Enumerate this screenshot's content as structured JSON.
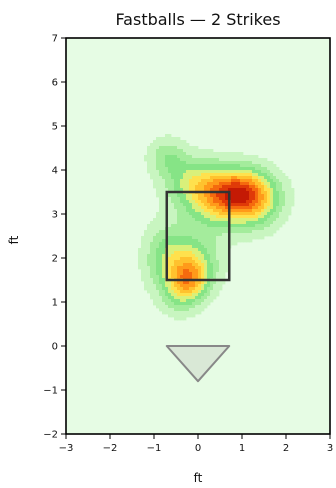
{
  "chart_data": {
    "type": "heatmap",
    "title": "Fastballs — 2 Strikes",
    "xlabel": "ft",
    "ylabel": "ft",
    "xlim": [
      -3,
      3
    ],
    "ylim": [
      -2,
      7
    ],
    "xticks": [
      -3,
      -2,
      -1,
      0,
      1,
      2,
      3
    ],
    "yticks": [
      -2,
      -1,
      0,
      1,
      2,
      3,
      4,
      5,
      6,
      7
    ],
    "xtick_labels": [
      "−3",
      "−2",
      "−1",
      "0",
      "1",
      "2",
      "3"
    ],
    "ytick_labels": [
      "−2",
      "−1",
      "0",
      "1",
      "2",
      "3",
      "4",
      "5",
      "6",
      "7"
    ],
    "grid": false,
    "background_color": "#e6fce4",
    "colormap": [
      "#e6fce4",
      "#c8f5c0",
      "#a4ec9c",
      "#86e486",
      "#d9f07a",
      "#ffe14d",
      "#ffc22e",
      "#ff9a1a",
      "#f56a0e",
      "#e03a08",
      "#c41a04"
    ],
    "density_peaks": [
      {
        "x": 0.95,
        "y": 3.5,
        "sx": 0.5,
        "sy": 0.38,
        "weight": 1.0
      },
      {
        "x": 0.45,
        "y": 3.25,
        "sx": 0.55,
        "sy": 0.45,
        "weight": 0.5
      },
      {
        "x": -0.1,
        "y": 3.75,
        "sx": 0.45,
        "sy": 0.38,
        "weight": 0.45
      },
      {
        "x": -0.7,
        "y": 4.3,
        "sx": 0.3,
        "sy": 0.3,
        "weight": 0.32
      },
      {
        "x": -0.2,
        "y": 1.5,
        "sx": 0.3,
        "sy": 0.3,
        "weight": 0.6
      },
      {
        "x": -0.15,
        "y": 1.9,
        "sx": 0.42,
        "sy": 0.45,
        "weight": 0.55
      },
      {
        "x": -0.75,
        "y": 2.0,
        "sx": 0.35,
        "sy": 0.55,
        "weight": 0.35
      },
      {
        "x": 1.35,
        "y": 3.2,
        "sx": 0.4,
        "sy": 0.4,
        "weight": 0.35
      },
      {
        "x": -0.4,
        "y": 1.1,
        "sx": 0.3,
        "sy": 0.3,
        "weight": 0.25
      }
    ],
    "strike_zone": {
      "x0": -0.71,
      "x1": 0.71,
      "y0": 1.5,
      "y1": 3.5,
      "color": "#333333"
    },
    "home_plate": {
      "points": [
        [
          -0.71,
          0
        ],
        [
          0.71,
          0
        ],
        [
          0,
          -0.8
        ]
      ],
      "fill": "#d9e8d6",
      "stroke": "#888888"
    }
  }
}
